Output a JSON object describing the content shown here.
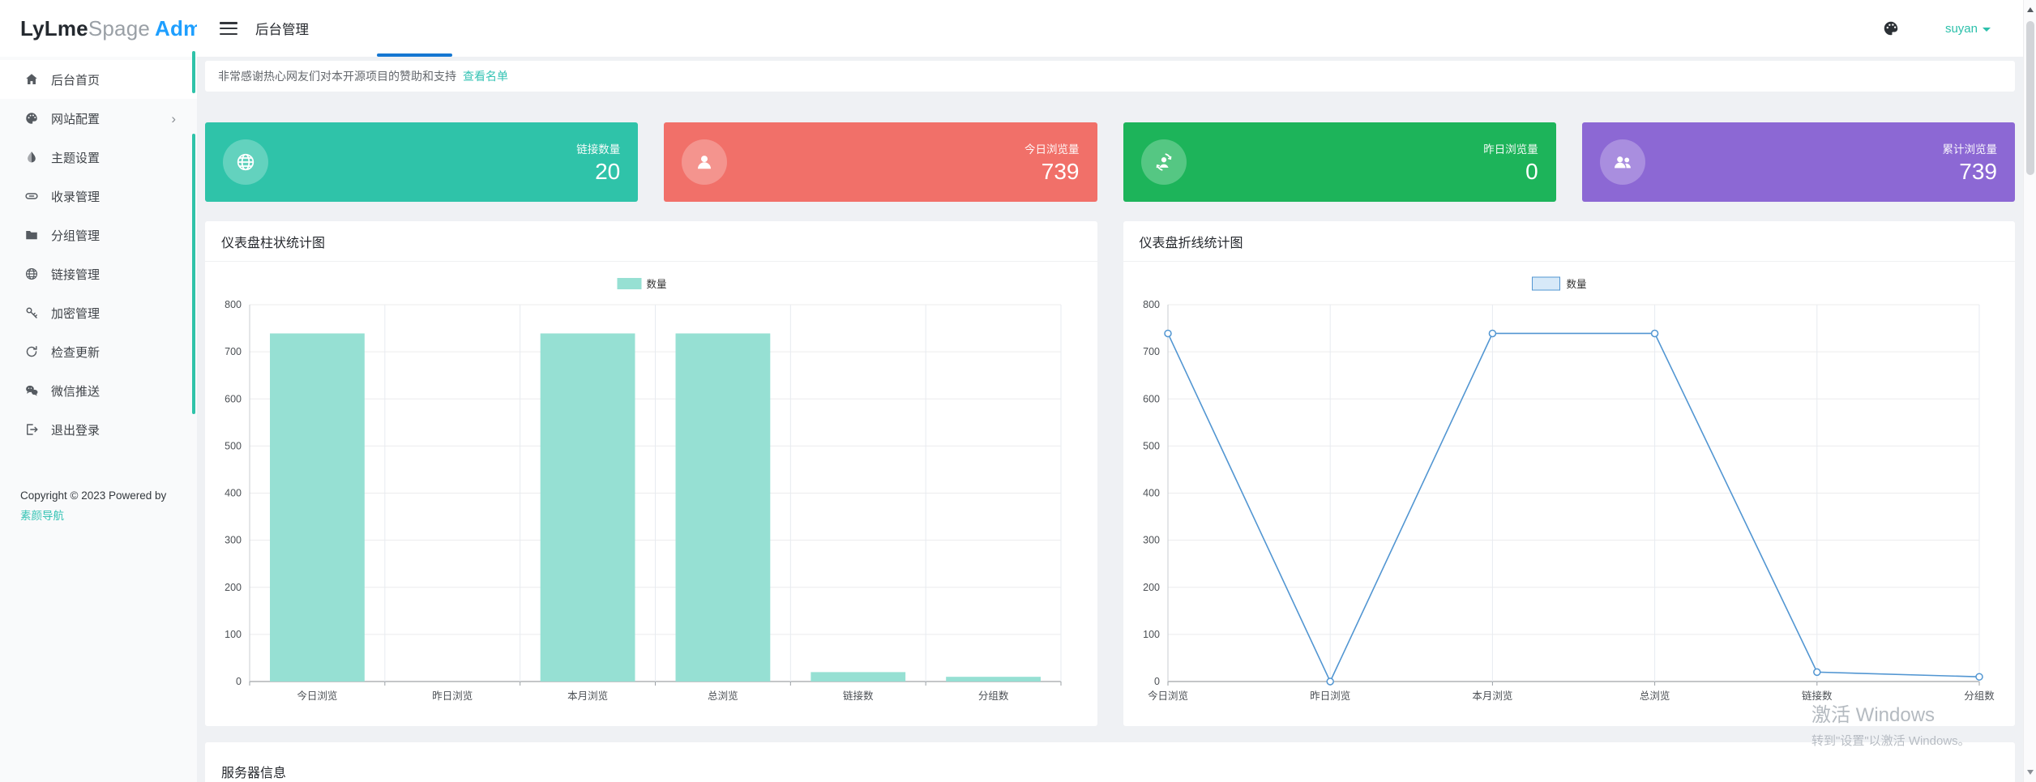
{
  "sidebar": {
    "logo": {
      "part1": "LyLme",
      "part2": "Spage",
      "part3": "Admin"
    },
    "menu": [
      {
        "icon": "home-icon",
        "label": "后台首页",
        "active": true,
        "arrow": false
      },
      {
        "icon": "palette-icon",
        "label": "网站配置",
        "active": false,
        "arrow": true
      },
      {
        "icon": "droplet-icon",
        "label": "主题设置",
        "active": false,
        "arrow": false
      },
      {
        "icon": "link-icon",
        "label": "收录管理",
        "active": false,
        "arrow": false
      },
      {
        "icon": "folder-icon",
        "label": "分组管理",
        "active": false,
        "arrow": false
      },
      {
        "icon": "globe-icon",
        "label": "链接管理",
        "active": false,
        "arrow": false
      },
      {
        "icon": "key-icon",
        "label": "加密管理",
        "active": false,
        "arrow": false
      },
      {
        "icon": "refresh-icon",
        "label": "检查更新",
        "active": false,
        "arrow": false
      },
      {
        "icon": "wechat-icon",
        "label": "微信推送",
        "active": false,
        "arrow": false
      },
      {
        "icon": "logout-icon",
        "label": "退出登录",
        "active": false,
        "arrow": false
      }
    ],
    "copyright_line": "Copyright © 2023 Powered by",
    "copyright_link": "素颜导航"
  },
  "topbar": {
    "title": "后台管理",
    "user": "suyan"
  },
  "alert": {
    "text": "非常感谢热心网友们对本开源项目的赞助和支持",
    "link": "查看名单"
  },
  "stat_cards": [
    {
      "icon": "globe-icon",
      "label": "链接数量",
      "value": "20",
      "color": "#2fc3a9"
    },
    {
      "icon": "person-icon",
      "label": "今日浏览量",
      "value": "739",
      "color": "#f17069"
    },
    {
      "icon": "person-sync-icon",
      "label": "昨日浏览量",
      "value": "0",
      "color": "#1db45a"
    },
    {
      "icon": "people-icon",
      "label": "累计浏览量",
      "value": "739",
      "color": "#8c68d4"
    }
  ],
  "chart_data": [
    {
      "type": "bar",
      "title": "仪表盘柱状统计图",
      "legend": [
        "数量"
      ],
      "categories": [
        "今日浏览",
        "昨日浏览",
        "本月浏览",
        "总浏览",
        "链接数",
        "分组数"
      ],
      "values": [
        739,
        0,
        739,
        739,
        20,
        10
      ],
      "xlabel": "",
      "ylabel": "",
      "ylim": [
        0,
        800
      ],
      "ytick_step": 100,
      "grid": true,
      "legend_position": "top-center",
      "bar_color": "#96e0d3"
    },
    {
      "type": "line",
      "title": "仪表盘折线统计图",
      "legend": [
        "数量"
      ],
      "categories": [
        "今日浏览",
        "昨日浏览",
        "本月浏览",
        "总浏览",
        "链接数",
        "分组数"
      ],
      "values": [
        739,
        0,
        739,
        739,
        20,
        10
      ],
      "xlabel": "",
      "ylabel": "",
      "ylim": [
        0,
        800
      ],
      "ytick_step": 100,
      "grid": true,
      "legend_position": "top-center",
      "line_color": "#5296d2",
      "marker": "hollow-circle",
      "legend_fill": "#d7e9f8"
    }
  ],
  "server_card": {
    "title": "服务器信息"
  },
  "watermark": {
    "line1": "激活 Windows",
    "line2": "转到\"设置\"以激活 Windows。"
  },
  "colors": {
    "accent_teal": "#2fc3a9",
    "link_teal": "#35c3b4",
    "logo_blue": "#1E9FFF",
    "tab_indicator_blue": "#1577d2",
    "content_bg": "#eff1f4"
  }
}
